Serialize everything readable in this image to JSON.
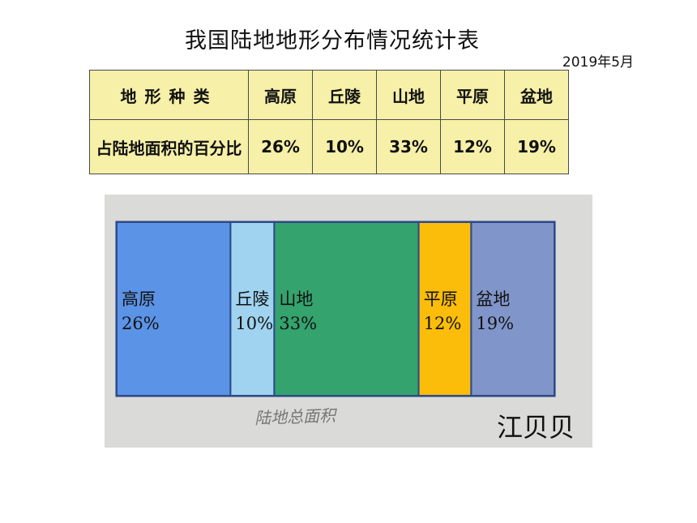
{
  "title": "我国陆地地形分布情况统计表",
  "date": "2019年5月",
  "table": {
    "header_label": "地形种类",
    "row_label": "占陆地面积的百分比"
  },
  "chart_data": {
    "type": "bar",
    "orientation": "stacked-horizontal",
    "categories": [
      "高原",
      "丘陵",
      "山地",
      "平原",
      "盆地"
    ],
    "values": [
      26,
      10,
      33,
      12,
      19
    ],
    "value_labels": [
      "26%",
      "10%",
      "33%",
      "12%",
      "19%"
    ],
    "colors": [
      "#5b93e6",
      "#9fd3ef",
      "#34a36e",
      "#fbbd0a",
      "#8095c9"
    ],
    "xlabel": "陆地总面积",
    "author": "江贝贝"
  }
}
